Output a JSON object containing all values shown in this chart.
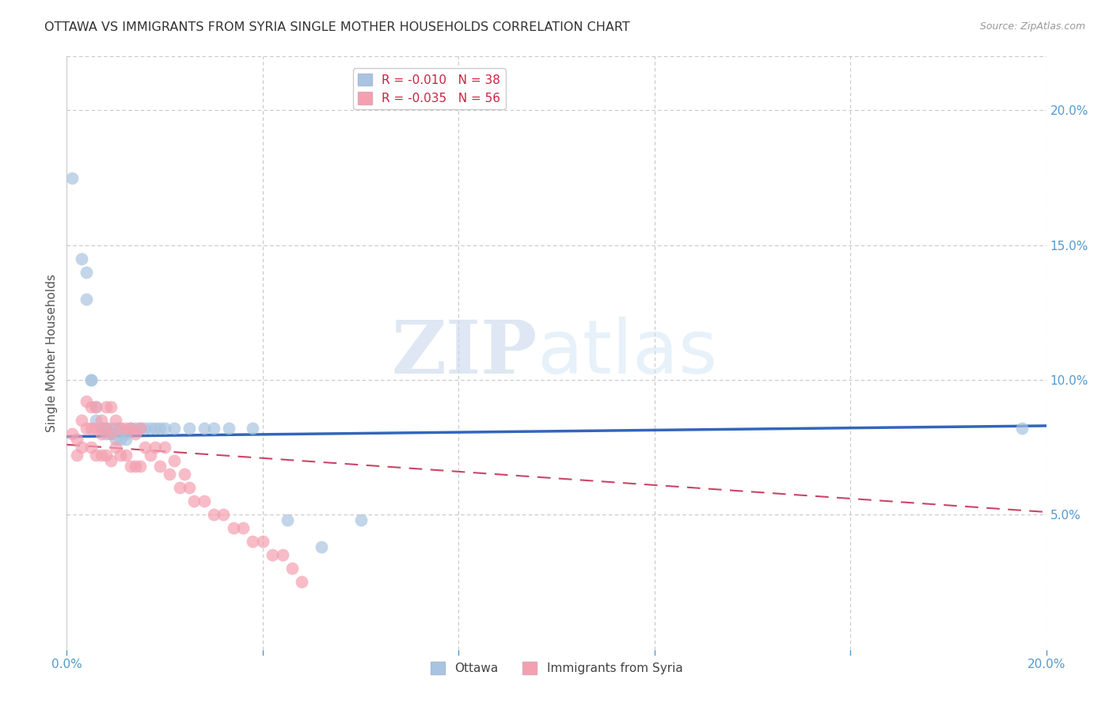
{
  "title": "OTTAWA VS IMMIGRANTS FROM SYRIA SINGLE MOTHER HOUSEHOLDS CORRELATION CHART",
  "source": "Source: ZipAtlas.com",
  "ylabel": "Single Mother Households",
  "xlim": [
    0.0,
    0.2
  ],
  "ylim": [
    0.0,
    0.22
  ],
  "yticks_right": [
    0.05,
    0.1,
    0.15,
    0.2
  ],
  "yticklabels_right": [
    "5.0%",
    "10.0%",
    "15.0%",
    "20.0%"
  ],
  "bg_color": "#ffffff",
  "grid_color": "#c8c8c8",
  "ottawa_color": "#a8c4e0",
  "syria_color": "#f4a0b0",
  "ottawa_edge": "#6699cc",
  "syria_edge": "#e06080",
  "legend_R1": "R = -0.010",
  "legend_N1": "N = 38",
  "legend_R2": "R = -0.035",
  "legend_N2": "N = 56",
  "watermark_zip": "ZIP",
  "watermark_atlas": "atlas",
  "title_color": "#333333",
  "tick_color": "#5599cc",
  "ottawa_line_color": "#3366bb",
  "syria_line_color": "#cc4466",
  "ottawa_x": [
    0.001,
    0.003,
    0.004,
    0.004,
    0.005,
    0.005,
    0.006,
    0.006,
    0.007,
    0.007,
    0.008,
    0.008,
    0.009,
    0.009,
    0.01,
    0.01,
    0.011,
    0.011,
    0.012,
    0.012,
    0.013,
    0.014,
    0.015,
    0.016,
    0.017,
    0.018,
    0.019,
    0.02,
    0.022,
    0.025,
    0.028,
    0.03,
    0.033,
    0.038,
    0.045,
    0.052,
    0.06,
    0.195
  ],
  "ottawa_y": [
    0.175,
    0.145,
    0.14,
    0.13,
    0.1,
    0.1,
    0.09,
    0.085,
    0.082,
    0.082,
    0.082,
    0.08,
    0.082,
    0.08,
    0.082,
    0.078,
    0.082,
    0.078,
    0.08,
    0.078,
    0.082,
    0.082,
    0.082,
    0.082,
    0.082,
    0.082,
    0.082,
    0.082,
    0.082,
    0.082,
    0.082,
    0.082,
    0.082,
    0.082,
    0.048,
    0.038,
    0.048,
    0.082
  ],
  "syria_x": [
    0.001,
    0.002,
    0.002,
    0.003,
    0.003,
    0.004,
    0.004,
    0.005,
    0.005,
    0.005,
    0.006,
    0.006,
    0.006,
    0.007,
    0.007,
    0.007,
    0.008,
    0.008,
    0.008,
    0.009,
    0.009,
    0.009,
    0.01,
    0.01,
    0.011,
    0.011,
    0.012,
    0.012,
    0.013,
    0.013,
    0.014,
    0.014,
    0.015,
    0.015,
    0.016,
    0.017,
    0.018,
    0.019,
    0.02,
    0.021,
    0.022,
    0.023,
    0.024,
    0.025,
    0.026,
    0.028,
    0.03,
    0.032,
    0.034,
    0.036,
    0.038,
    0.04,
    0.042,
    0.044,
    0.046,
    0.048
  ],
  "syria_y": [
    0.08,
    0.078,
    0.072,
    0.085,
    0.075,
    0.092,
    0.082,
    0.09,
    0.082,
    0.075,
    0.09,
    0.082,
    0.072,
    0.085,
    0.08,
    0.072,
    0.09,
    0.082,
    0.072,
    0.09,
    0.08,
    0.07,
    0.085,
    0.075,
    0.082,
    0.072,
    0.082,
    0.072,
    0.082,
    0.068,
    0.08,
    0.068,
    0.082,
    0.068,
    0.075,
    0.072,
    0.075,
    0.068,
    0.075,
    0.065,
    0.07,
    0.06,
    0.065,
    0.06,
    0.055,
    0.055,
    0.05,
    0.05,
    0.045,
    0.045,
    0.04,
    0.04,
    0.035,
    0.035,
    0.03,
    0.025
  ]
}
